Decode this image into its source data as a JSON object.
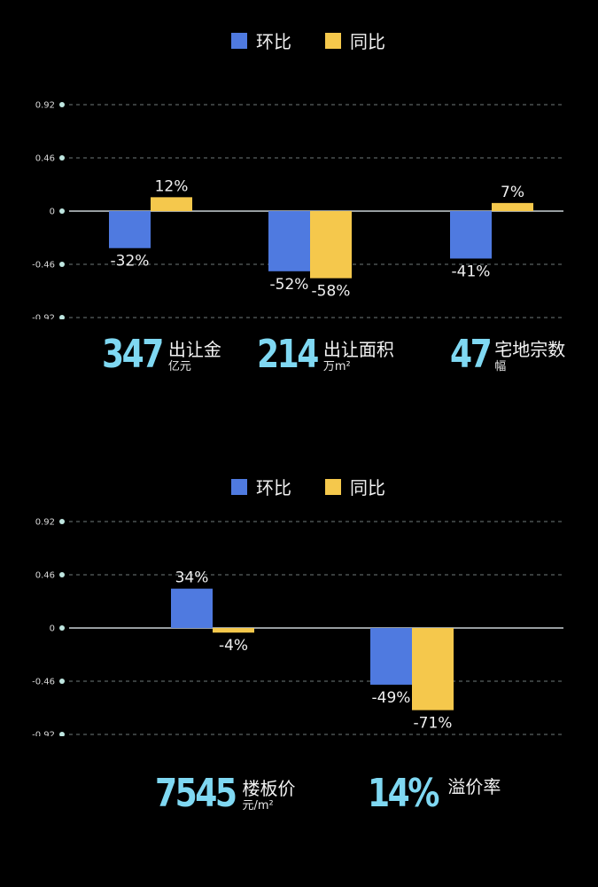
{
  "chart_data": [
    {
      "type": "bar",
      "legend": {
        "items": [
          {
            "label": "环比",
            "color": "#4f7ae0"
          },
          {
            "label": "同比",
            "color": "#f5c84c"
          }
        ],
        "position": "top-center"
      },
      "yticks": [
        "0.92",
        "0.46",
        "0",
        "-0.46",
        "-0.92"
      ],
      "ylim": [
        -0.92,
        0.92
      ],
      "grid": true,
      "groups": [
        {
          "values": [
            -0.32,
            0.12
          ],
          "labels": [
            "-32%",
            "12%"
          ]
        },
        {
          "values": [
            -0.52,
            -0.58
          ],
          "labels": [
            "-52%",
            "-58%"
          ]
        },
        {
          "values": [
            -0.41,
            0.07
          ],
          "labels": [
            "-41%",
            "7%"
          ]
        }
      ],
      "stats": [
        {
          "value": "347",
          "name": "出让金",
          "unit": "亿元"
        },
        {
          "value": "214",
          "name": "出让面积",
          "unit": "万m²"
        },
        {
          "value": "47",
          "name": "宅地宗数",
          "unit": "幅"
        }
      ]
    },
    {
      "type": "bar",
      "legend": {
        "items": [
          {
            "label": "环比",
            "color": "#4f7ae0"
          },
          {
            "label": "同比",
            "color": "#f5c84c"
          }
        ],
        "position": "top-center"
      },
      "yticks": [
        "0.92",
        "0.46",
        "0",
        "-0.46",
        "-0.92"
      ],
      "ylim": [
        -0.92,
        0.92
      ],
      "grid": true,
      "groups": [
        {
          "values": [
            0.34,
            -0.04
          ],
          "labels": [
            "34%",
            "-4%"
          ]
        },
        {
          "values": [
            -0.49,
            -0.71
          ],
          "labels": [
            "-49%",
            "-71%"
          ]
        }
      ],
      "stats": [
        {
          "value": "7545",
          "name": "楼板价",
          "unit": "元/m²"
        },
        {
          "value": "14%",
          "name": "溢价率",
          "unit": ""
        }
      ]
    }
  ]
}
